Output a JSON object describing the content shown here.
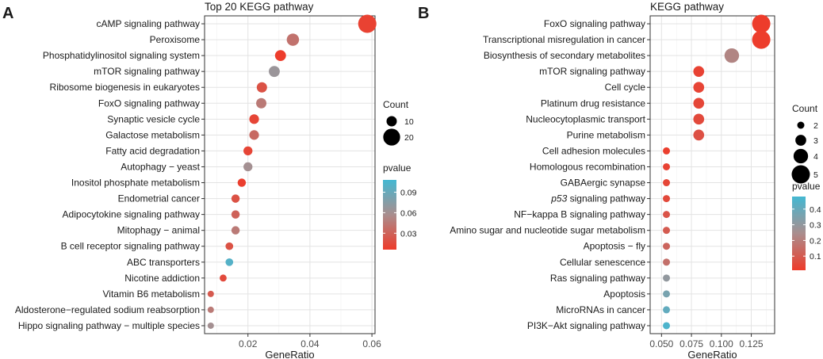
{
  "chart_data": [
    {
      "panel": "A",
      "type": "scatter",
      "title": "Top 20 KEGG pathway",
      "xlabel": "GeneRatio",
      "ylabel": "",
      "xlim": [
        0.006,
        0.061
      ],
      "xticks": [
        {
          "value": 0.02,
          "label": "0.02"
        },
        {
          "value": 0.04,
          "label": "0.04"
        },
        {
          "value": 0.06,
          "label": "0.06"
        }
      ],
      "grid": true,
      "size_legend": {
        "title": "Count",
        "entries": [
          {
            "value": 10,
            "label": "10"
          },
          {
            "value": 20,
            "label": "20"
          }
        ],
        "range": [
          4,
          22
        ]
      },
      "color_legend": {
        "title": "pvalue",
        "ticks": [
          {
            "value": 0.03,
            "label": "0.03"
          },
          {
            "value": 0.06,
            "label": "0.06"
          },
          {
            "value": 0.09,
            "label": "0.09"
          }
        ],
        "range": [
          0.006,
          0.108
        ],
        "low_color": "#ee3b2a",
        "high_color": "#44b8d2",
        "mid_color": "#aa8e8e"
      },
      "points": [
        {
          "category": "cAMP signaling pathway",
          "x": 0.0585,
          "count": 22,
          "pvalue": 0.01
        },
        {
          "category": "Peroxisome",
          "x": 0.0345,
          "count": 13,
          "pvalue": 0.04
        },
        {
          "category": "Phosphatidylinositol signaling system",
          "x": 0.0305,
          "count": 11,
          "pvalue": 0.007
        },
        {
          "category": "mTOR signaling pathway",
          "x": 0.0285,
          "count": 11,
          "pvalue": 0.065
        },
        {
          "category": "Ribosome biogenesis in eukaryotes",
          "x": 0.0245,
          "count": 10,
          "pvalue": 0.02
        },
        {
          "category": "FoxO signaling pathway",
          "x": 0.0243,
          "count": 10,
          "pvalue": 0.045
        },
        {
          "category": "Synaptic vesicle cycle",
          "x": 0.022,
          "count": 9,
          "pvalue": 0.012
        },
        {
          "category": "Galactose metabolism",
          "x": 0.022,
          "count": 9,
          "pvalue": 0.035
        },
        {
          "category": "Fatty acid degradation",
          "x": 0.02,
          "count": 8,
          "pvalue": 0.012
        },
        {
          "category": "Autophagy − yeast",
          "x": 0.02,
          "count": 8,
          "pvalue": 0.06
        },
        {
          "category": "Inositol phosphate metabolism",
          "x": 0.018,
          "count": 7,
          "pvalue": 0.008
        },
        {
          "category": "Endometrial cancer",
          "x": 0.016,
          "count": 7,
          "pvalue": 0.02
        },
        {
          "category": "Adipocytokine signaling pathway",
          "x": 0.016,
          "count": 7,
          "pvalue": 0.03
        },
        {
          "category": "Mitophagy − animal",
          "x": 0.016,
          "count": 7,
          "pvalue": 0.045
        },
        {
          "category": "B cell receptor signaling pathway",
          "x": 0.014,
          "count": 6,
          "pvalue": 0.02
        },
        {
          "category": "ABC transporters",
          "x": 0.014,
          "count": 6,
          "pvalue": 0.1
        },
        {
          "category": "Nicotine addiction",
          "x": 0.012,
          "count": 5,
          "pvalue": 0.015
        },
        {
          "category": "Vitamin B6 metabolism",
          "x": 0.008,
          "count": 3,
          "pvalue": 0.025
        },
        {
          "category": "Aldosterone−regulated sodium reabsorption",
          "x": 0.008,
          "count": 3,
          "pvalue": 0.045
        },
        {
          "category": "Hippo signaling pathway − multiple species",
          "x": 0.008,
          "count": 3,
          "pvalue": 0.06
        }
      ]
    },
    {
      "panel": "B",
      "type": "scatter",
      "title": "KEGG pathway",
      "xlabel": "GeneRatio",
      "ylabel": "",
      "xlim": [
        0.0405,
        0.1445
      ],
      "xticks": [
        {
          "value": 0.05,
          "label": "0.050"
        },
        {
          "value": 0.075,
          "label": "0.075"
        },
        {
          "value": 0.1,
          "label": "0.100"
        },
        {
          "value": 0.125,
          "label": "0.125"
        }
      ],
      "grid": true,
      "size_legend": {
        "title": "Count",
        "entries": [
          {
            "value": 2,
            "label": "2"
          },
          {
            "value": 3,
            "label": "3"
          },
          {
            "value": 4,
            "label": "4"
          },
          {
            "value": 5,
            "label": "5"
          }
        ],
        "range": [
          2,
          5
        ]
      },
      "color_legend": {
        "title": "pvalue",
        "ticks": [
          {
            "value": 0.1,
            "label": "0.1"
          },
          {
            "value": 0.2,
            "label": "0.2"
          },
          {
            "value": 0.3,
            "label": "0.3"
          },
          {
            "value": 0.4,
            "label": "0.4"
          }
        ],
        "range": [
          0.01,
          0.48
        ],
        "low_color": "#ee3b2a",
        "high_color": "#44b8d2",
        "mid_color": "#aa8e8e"
      },
      "points": [
        {
          "category": "FoxO signaling pathway",
          "x": 0.1333,
          "count": 5,
          "pvalue": 0.012
        },
        {
          "category": "Transcriptional misregulation in cancer",
          "x": 0.1333,
          "count": 5,
          "pvalue": 0.015
        },
        {
          "category": "Biosynthesis of secondary metabolites",
          "x": 0.1087,
          "count": 4,
          "pvalue": 0.22
        },
        {
          "category": "mTOR signaling pathway",
          "x": 0.0811,
          "count": 3,
          "pvalue": 0.03
        },
        {
          "category": "Cell cycle",
          "x": 0.0811,
          "count": 3,
          "pvalue": 0.035
        },
        {
          "category": "Platinum drug resistance",
          "x": 0.0811,
          "count": 3,
          "pvalue": 0.04
        },
        {
          "category": "Nucleocytoplasmic transport",
          "x": 0.0811,
          "count": 3,
          "pvalue": 0.05
        },
        {
          "category": "Purine metabolism",
          "x": 0.0811,
          "count": 3,
          "pvalue": 0.07
        },
        {
          "category": "Cell adhesion molecules",
          "x": 0.0541,
          "count": 2,
          "pvalue": 0.02
        },
        {
          "category": "Homologous recombination",
          "x": 0.0541,
          "count": 2,
          "pvalue": 0.03
        },
        {
          "category": "GABAergic synapse",
          "x": 0.0541,
          "count": 2,
          "pvalue": 0.04
        },
        {
          "category": "p53 signaling pathway",
          "category_italic": "p53",
          "category_rest": " signaling pathway",
          "x": 0.0541,
          "count": 2,
          "pvalue": 0.05
        },
        {
          "category": "NF−kappa B signaling pathway",
          "x": 0.0541,
          "count": 2,
          "pvalue": 0.08
        },
        {
          "category": "Amino sugar and nucleotide sugar metabolism",
          "x": 0.0541,
          "count": 2,
          "pvalue": 0.1
        },
        {
          "category": "Apoptosis − fly",
          "x": 0.0541,
          "count": 2,
          "pvalue": 0.13
        },
        {
          "category": "Cellular senescence",
          "x": 0.0541,
          "count": 2,
          "pvalue": 0.16
        },
        {
          "category": "Ras signaling pathway",
          "x": 0.0541,
          "count": 2,
          "pvalue": 0.3
        },
        {
          "category": "Apoptosis",
          "x": 0.0541,
          "count": 2,
          "pvalue": 0.36
        },
        {
          "category": "MicroRNAs in cancer",
          "x": 0.0541,
          "count": 2,
          "pvalue": 0.41
        },
        {
          "category": "PI3K−Akt signaling pathway",
          "x": 0.0541,
          "count": 2,
          "pvalue": 0.46
        }
      ]
    }
  ]
}
